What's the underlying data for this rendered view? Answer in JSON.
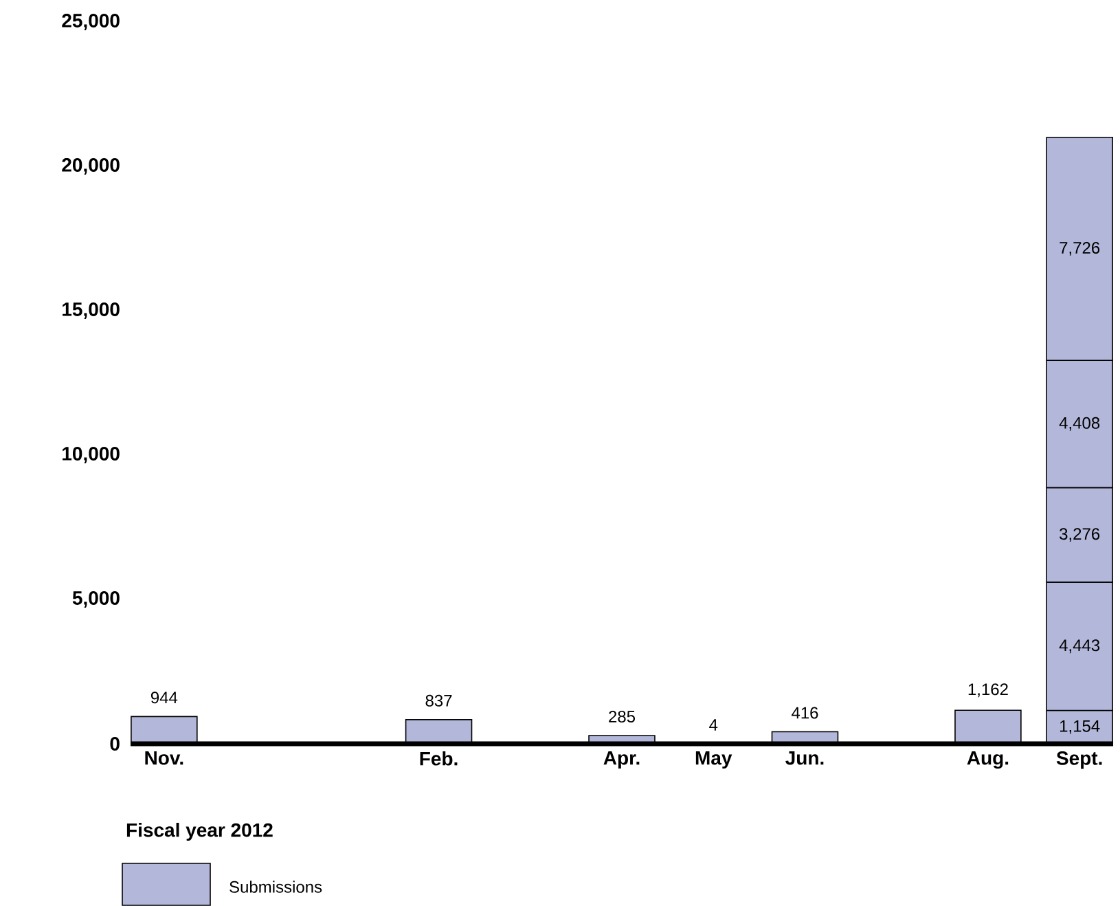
{
  "chart_data": {
    "type": "bar",
    "stacked": true,
    "legend_title": "Fiscal year 2012",
    "legend": "bottom",
    "x": [
      "2011-11",
      "2012-02",
      "2012-04",
      "2012-05",
      "2012-06",
      "2012-08",
      "2012-09"
    ],
    "xlim": [
      "2011-10-20",
      "2012-09-12"
    ],
    "xticks": [
      {
        "value": "2011-11",
        "label": "Nov."
      },
      {
        "value": "2012-02",
        "label": "Feb."
      },
      {
        "value": "2012-04",
        "label": "Apr."
      },
      {
        "value": "2012-05",
        "label": "May"
      },
      {
        "value": "2012-06",
        "label": "Jun."
      },
      {
        "value": "2012-08",
        "label": "Aug."
      },
      {
        "value": "2012-09",
        "label": "Sept."
      }
    ],
    "ylim": [
      0,
      25000
    ],
    "yticks": [
      {
        "value": 0,
        "label": "0"
      },
      {
        "value": 5000,
        "label": "5,000"
      },
      {
        "value": 10000,
        "label": "10,000"
      },
      {
        "value": 15000,
        "label": "15,000"
      },
      {
        "value": 20000,
        "label": "20,000"
      },
      {
        "value": 25000,
        "label": "25,000"
      }
    ],
    "series": [
      {
        "name": "Submissions",
        "color": "#b3b7d9",
        "values": [
          944,
          837,
          285,
          4,
          416,
          1162,
          1154
        ],
        "value_labels": [
          "944",
          "837",
          "285",
          "4",
          "416",
          "1,162",
          "1,154"
        ]
      },
      {
        "color": "#b3b7d9",
        "values": [
          null,
          null,
          null,
          null,
          null,
          null,
          4443
        ],
        "value_labels": [
          null,
          null,
          null,
          null,
          null,
          null,
          "4,443"
        ]
      },
      {
        "color": "#b3b7d9",
        "values": [
          null,
          null,
          null,
          null,
          null,
          null,
          3276
        ],
        "value_labels": [
          null,
          null,
          null,
          null,
          null,
          null,
          "3,276"
        ]
      },
      {
        "color": "#b3b7d9",
        "values": [
          null,
          null,
          null,
          null,
          null,
          null,
          4408
        ],
        "value_labels": [
          null,
          null,
          null,
          null,
          null,
          null,
          "4,408"
        ]
      },
      {
        "color": "#b3b7d9",
        "values": [
          null,
          null,
          null,
          null,
          null,
          null,
          7726
        ],
        "value_labels": [
          null,
          null,
          null,
          null,
          null,
          null,
          "7,726"
        ]
      }
    ]
  }
}
